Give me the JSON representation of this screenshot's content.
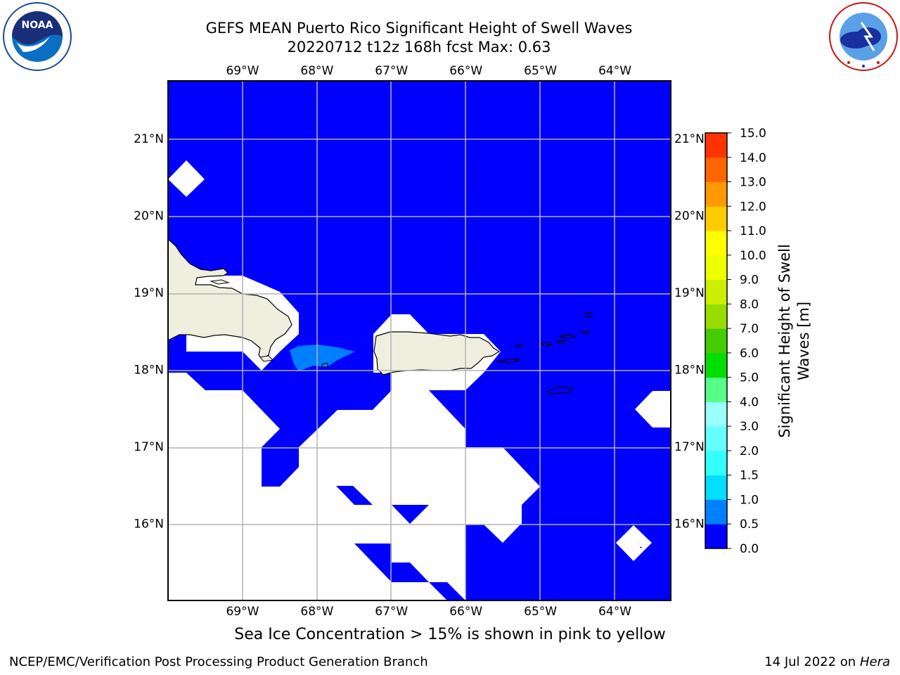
{
  "title": {
    "line1": "GEFS MEAN Puerto Rico Significant Height of Swell Waves",
    "line2": "20220712 t12z 168h fcst   Max: 0.63"
  },
  "logos": {
    "left": "noaa-logo",
    "right": "nws-logo",
    "noaa_text": "NOAA",
    "noaa_ring_text": "NATIONAL OCEANIC AND ATMOSPHERIC ADMINISTRATION · U.S. DEPARTMENT OF COMMERCE",
    "nws_ring_text": "NATIONAL WEATHER SERVICE"
  },
  "map": {
    "lon_range": [
      -70,
      -63.25
    ],
    "lat_range": [
      15,
      21.75
    ],
    "lon_ticks": [
      {
        "value": -69,
        "label": "69°W"
      },
      {
        "value": -68,
        "label": "68°W"
      },
      {
        "value": -67,
        "label": "67°W"
      },
      {
        "value": -66,
        "label": "66°W"
      },
      {
        "value": -65,
        "label": "65°W"
      },
      {
        "value": -64,
        "label": "64°W"
      }
    ],
    "lat_ticks": [
      {
        "value": 21,
        "label": "21°N"
      },
      {
        "value": 20,
        "label": "20°N"
      },
      {
        "value": 19,
        "label": "19°N"
      },
      {
        "value": 18,
        "label": "18°N"
      },
      {
        "value": 17,
        "label": "17°N"
      },
      {
        "value": 16,
        "label": "16°N"
      }
    ],
    "colors": {
      "ocean_0_0.5": "#0000ff",
      "ocean_0.5_1.0": "#0080ff",
      "no_data": "#ffffff",
      "land": "#efefdf",
      "grid": "#b3b3b3"
    }
  },
  "colorbar": {
    "title_line1": "Significant Height of Swell",
    "title_line2": "Waves [m]",
    "levels": [
      "0.0",
      "0.5",
      "1.0",
      "1.5",
      "2.0",
      "3.0",
      "4.0",
      "5.0",
      "6.0",
      "7.0",
      "8.0",
      "9.0",
      "10.0",
      "11.0",
      "12.0",
      "13.0",
      "14.0",
      "15.0"
    ],
    "colors": [
      "#0000ff",
      "#0080ff",
      "#00ddff",
      "#33ffff",
      "#66ffff",
      "#99ffff",
      "#55ff88",
      "#00dd00",
      "#44cc00",
      "#99dd00",
      "#ccee00",
      "#eeff00",
      "#ffff00",
      "#ffcc00",
      "#ff9900",
      "#ff6600",
      "#ff3300",
      "#ff0000"
    ]
  },
  "subcaption": "Sea Ice Concentration > 15% is shown in pink to yellow",
  "footer": {
    "left": "NCEP/EMC/Verification Post Processing Product Generation Branch",
    "right_prefix": "14 Jul 2022 on ",
    "right_host": "Hera"
  }
}
